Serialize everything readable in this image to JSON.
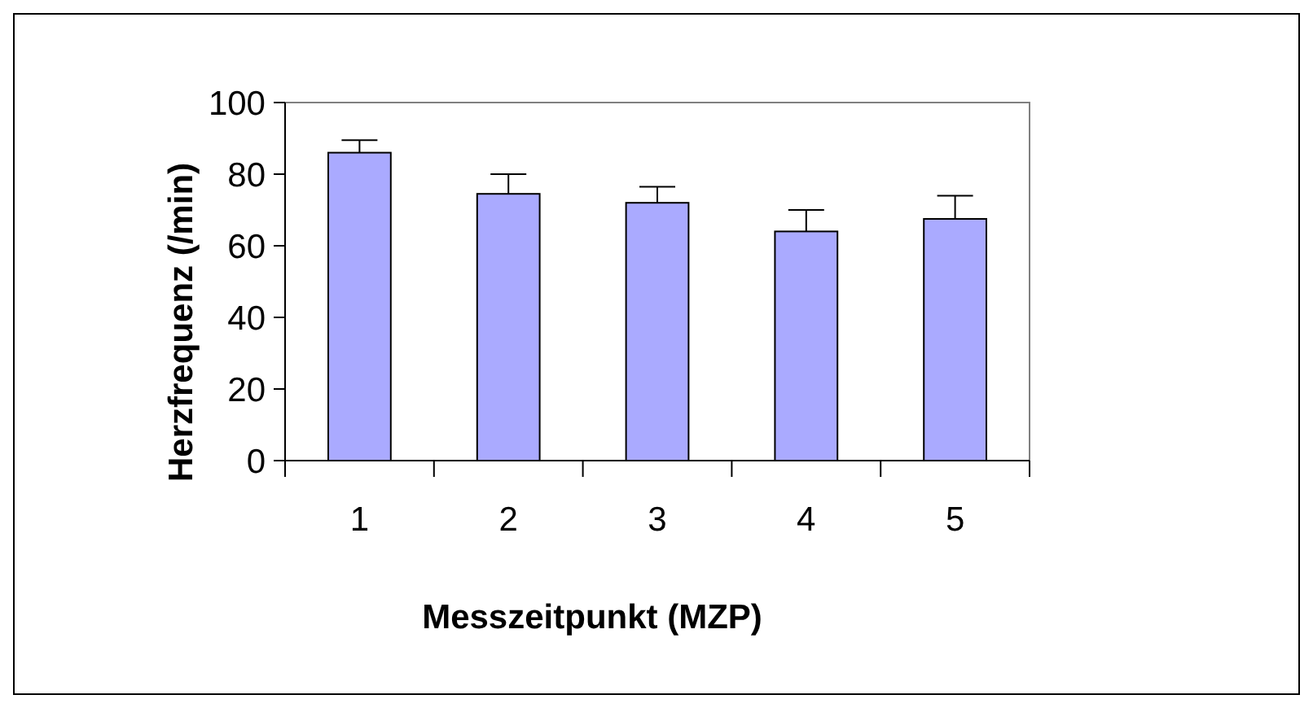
{
  "chart_data": {
    "type": "bar",
    "xlabel": "Messzeitpunkt (MZP)",
    "ylabel": "Herzfrequenz (/min)",
    "categories": [
      "1",
      "2",
      "3",
      "4",
      "5"
    ],
    "values": [
      86,
      74.5,
      72,
      64,
      67.5
    ],
    "errors": [
      [
        86,
        89.5
      ],
      [
        74.5,
        80
      ],
      [
        72,
        76.5
      ],
      [
        64,
        70
      ],
      [
        67.5,
        74
      ]
    ],
    "color": "#aaaaff",
    "ylim": [
      0,
      100
    ],
    "yticks": [
      0,
      20,
      40,
      60,
      80,
      100
    ]
  }
}
